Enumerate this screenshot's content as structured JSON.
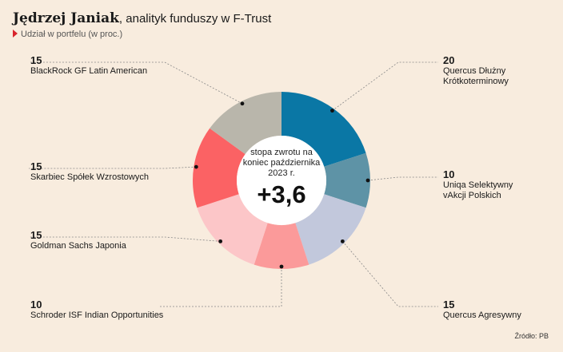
{
  "header": {
    "title_name": "Jędrzej Janiak",
    "title_rest": ", analityk funduszy w F-Trust",
    "subtitle": "Udział w portfelu (w proc.)"
  },
  "center": {
    "caption": "stopa zwrotu na koniec października 2023 r.",
    "value": "+3,6"
  },
  "source": "Źródło: PB",
  "chart_data": {
    "type": "donut",
    "title": "Udział w portfelu (w proc.)",
    "slices": [
      {
        "label": "Quercus Dłużny Krótkoterminowy",
        "value": 20,
        "color": "#0a77a5"
      },
      {
        "label": "Uniqa Selektywny vAkcji Polskich",
        "value": 10,
        "color": "#5e93a6"
      },
      {
        "label": "Quercus Agresywny",
        "value": 15,
        "color": "#c2c8dc"
      },
      {
        "label": "Schroder ISF Indian Opportunities",
        "value": 10,
        "color": "#fb9a9a"
      },
      {
        "label": "Goldman Sachs Japonia",
        "value": 15,
        "color": "#fcc6c8"
      },
      {
        "label": "Skarbiec Spółek Wzrostowych",
        "value": 15,
        "color": "#fb6264"
      },
      {
        "label": "BlackRock GF Latin American",
        "value": 15,
        "color": "#b9b6ab"
      }
    ],
    "value_labels": [
      "20",
      "10",
      "15",
      "10",
      "15",
      "15",
      "15"
    ]
  }
}
